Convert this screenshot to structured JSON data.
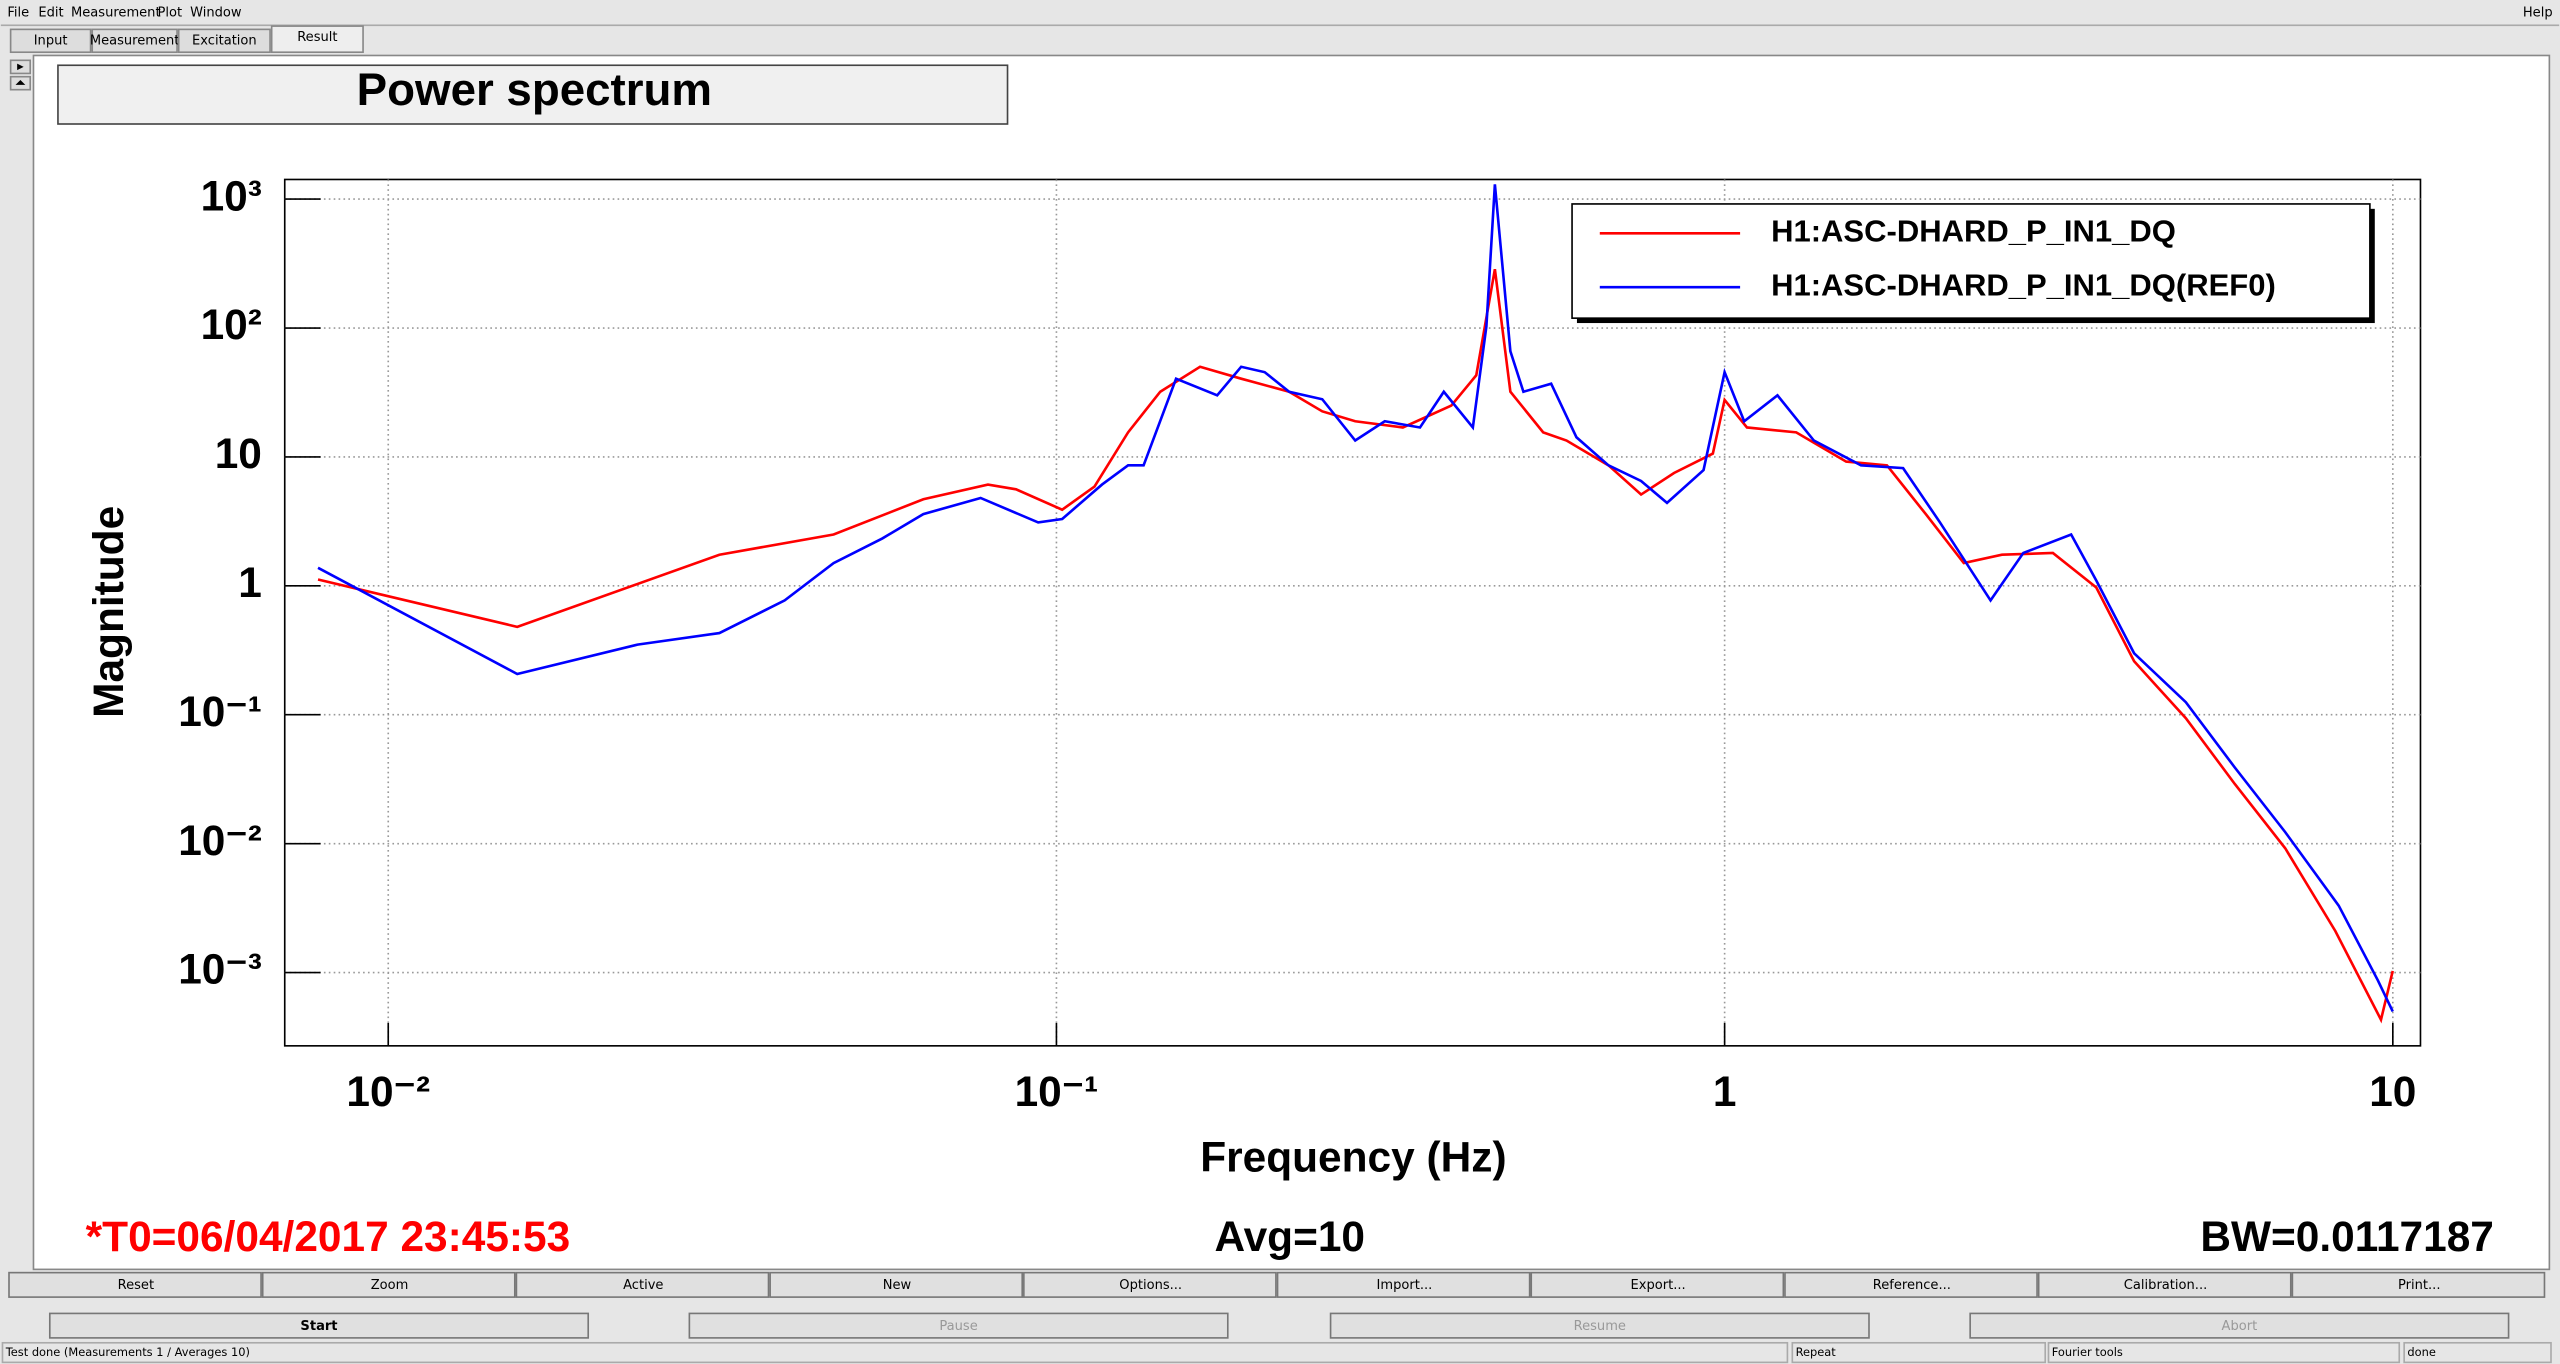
{
  "menu": [
    "File",
    "Edit",
    "Measurement",
    "Plot",
    "Window"
  ],
  "menu_right": "Help",
  "tabs": [
    "Input",
    "Measurement",
    "Excitation",
    "Result"
  ],
  "chart_data": {
    "type": "line",
    "title": "Power spectrum",
    "xlabel": "Frequency (Hz)",
    "ylabel": "Magnitude",
    "xscale": "log",
    "yscale": "log",
    "xlim": [
      0.007,
      11
    ],
    "ylim": [
      0.00027,
      1420
    ],
    "xticks": [
      {
        "value": 0.01,
        "label": "10⁻²"
      },
      {
        "value": 0.1,
        "label": "10⁻¹"
      },
      1,
      10
    ],
    "yticks": [
      {
        "value": 1000,
        "label": "10³"
      },
      {
        "value": 100,
        "label": "10²"
      },
      10,
      1,
      {
        "value": 0.1,
        "label": "10⁻¹"
      },
      {
        "value": 0.01,
        "label": "10⁻²"
      },
      {
        "value": 0.001,
        "label": "10⁻³"
      }
    ],
    "grid": true,
    "legend": "top-right",
    "series": [
      {
        "name": "H1:ASC-DHARD_P_IN1_DQ",
        "color": "#ff0000",
        "x": [
          0.00785,
          0.0156,
          0.0313,
          0.0464,
          0.0632,
          0.079,
          0.087,
          0.102,
          0.114,
          0.128,
          0.143,
          0.164,
          0.189,
          0.223,
          0.25,
          0.28,
          0.33,
          0.39,
          0.425,
          0.453,
          0.478,
          0.535,
          0.58,
          0.67,
          0.75,
          0.84,
          0.96,
          1.0,
          1.08,
          1.28,
          1.52,
          1.75,
          2.0,
          2.28,
          2.6,
          3.1,
          3.6,
          4.1,
          4.9,
          5.8,
          6.9,
          8.2,
          9.6,
          10
        ],
        "values": [
          1.12,
          0.48,
          1.74,
          2.5,
          4.69,
          6.1,
          5.6,
          3.9,
          5.9,
          15.5,
          32,
          50,
          40.5,
          32,
          22.6,
          18.9,
          16.9,
          25,
          43,
          286,
          32,
          15.5,
          13.4,
          8.6,
          5.1,
          7.5,
          10.6,
          27.7,
          16.9,
          15.5,
          9.2,
          8.6,
          3.6,
          1.5,
          1.74,
          1.8,
          0.97,
          0.26,
          0.094,
          0.029,
          0.0092,
          0.0021,
          0.00043,
          0.00103
        ]
      },
      {
        "name": "H1:ASC-DHARD_P_IN1_DQ(REF0)",
        "color": "#0000ff",
        "x": [
          0.00785,
          0.0156,
          0.0236,
          0.0313,
          0.0392,
          0.0464,
          0.0549,
          0.0632,
          0.077,
          0.0939,
          0.102,
          0.117,
          0.128,
          0.135,
          0.151,
          0.174,
          0.189,
          0.205,
          0.223,
          0.25,
          0.28,
          0.31,
          0.35,
          0.38,
          0.42,
          0.44,
          0.453,
          0.478,
          0.5,
          0.55,
          0.6,
          0.67,
          0.75,
          0.82,
          0.93,
          1.0,
          1.07,
          1.2,
          1.36,
          1.6,
          1.85,
          2.1,
          2.5,
          2.8,
          3.3,
          3.6,
          4.1,
          4.9,
          5.8,
          6.9,
          8.3,
          9.5,
          10
        ],
        "values": [
          1.38,
          0.207,
          0.35,
          0.43,
          0.77,
          1.5,
          2.33,
          3.6,
          4.8,
          3.1,
          3.3,
          6.1,
          8.6,
          8.6,
          40.5,
          30,
          50,
          45.5,
          32,
          28,
          13.4,
          18.9,
          16.9,
          32,
          16.9,
          103,
          1300,
          66,
          32,
          37,
          14.2,
          8.6,
          6.5,
          4.4,
          7.9,
          45.5,
          18.9,
          30,
          13.4,
          8.6,
          8.2,
          3.1,
          0.77,
          1.8,
          2.5,
          1.1,
          0.3,
          0.125,
          0.039,
          0.0123,
          0.0033,
          0.00087,
          0.0005
        ]
      }
    ]
  },
  "info": {
    "t0": "*T0=06/04/2017 23:45:53",
    "avg": "Avg=10",
    "bw": "BW=0.0117187"
  },
  "buttons": [
    "Reset",
    "Zoom",
    "Active",
    "New",
    "Options...",
    "Import...",
    "Export...",
    "Reference...",
    "Calibration...",
    "Print..."
  ],
  "controls": [
    "Start",
    "Pause",
    "Resume",
    "Abort"
  ],
  "status": [
    "Test done (Measurements 1 / Averages 10)",
    "Repeat",
    "Fourier tools",
    "done"
  ]
}
